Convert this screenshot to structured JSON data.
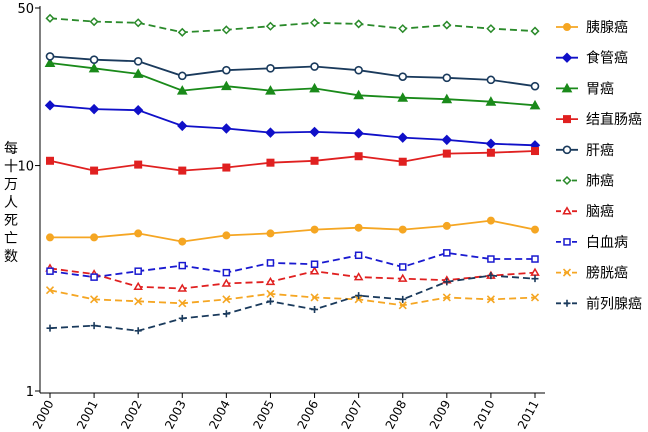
{
  "chart_data": {
    "type": "line",
    "title": "",
    "xlabel": "",
    "ylabel": "每十万人死亡数",
    "y_scale": "log",
    "ylim": [
      1,
      50
    ],
    "y_ticks": [
      1,
      10,
      50
    ],
    "y_tick_labels": [
      "1",
      "10",
      "50"
    ],
    "x": [
      "2000",
      "2001",
      "2002",
      "2003",
      "2004",
      "2005",
      "2006",
      "2007",
      "2008",
      "2009",
      "2010",
      "2011"
    ],
    "grid": false,
    "legend_position": "right",
    "series": [
      {
        "name": "胰腺癌",
        "color": "#f5a623",
        "dash": "solid",
        "marker": "circle-filled",
        "values": [
          4.8,
          4.8,
          5.0,
          4.6,
          4.9,
          5.0,
          5.2,
          5.3,
          5.2,
          5.4,
          5.7,
          5.2
        ]
      },
      {
        "name": "食管癌",
        "color": "#1010c8",
        "dash": "solid",
        "marker": "diamond-filled",
        "values": [
          18.5,
          17.8,
          17.6,
          15.0,
          14.6,
          14.0,
          14.1,
          13.9,
          13.3,
          13.0,
          12.5,
          12.3
        ]
      },
      {
        "name": "胃癌",
        "color": "#1a8a1a",
        "dash": "solid",
        "marker": "triangle-filled",
        "values": [
          28.5,
          27.0,
          25.5,
          21.5,
          22.5,
          21.5,
          22.0,
          20.5,
          20.0,
          19.7,
          19.2,
          18.5
        ]
      },
      {
        "name": "结直肠癌",
        "color": "#e02020",
        "dash": "solid",
        "marker": "square-filled",
        "values": [
          10.5,
          9.5,
          10.1,
          9.5,
          9.8,
          10.3,
          10.5,
          11.0,
          10.4,
          11.3,
          11.4,
          11.6
        ]
      },
      {
        "name": "肝癌",
        "color": "#1a3a5c",
        "dash": "solid",
        "marker": "circle-open",
        "values": [
          30.5,
          29.5,
          29.0,
          25.0,
          26.5,
          27.0,
          27.5,
          26.5,
          24.8,
          24.5,
          24.0,
          22.5
        ]
      },
      {
        "name": "肺癌",
        "color": "#2a8a2a",
        "dash": "dashed",
        "marker": "diamond-open",
        "values": [
          45.0,
          43.5,
          43.0,
          39.0,
          40.0,
          41.5,
          43.0,
          42.5,
          40.5,
          42.0,
          40.5,
          39.5
        ]
      },
      {
        "name": "脑癌",
        "color": "#e02020",
        "dash": "dashed",
        "marker": "triangle-open",
        "values": [
          3.5,
          3.3,
          2.9,
          2.85,
          3.0,
          3.05,
          3.4,
          3.2,
          3.15,
          3.1,
          3.25,
          3.35
        ]
      },
      {
        "name": "白血病",
        "color": "#1a1ad0",
        "dash": "dashed",
        "marker": "square-open",
        "values": [
          3.4,
          3.2,
          3.4,
          3.6,
          3.35,
          3.7,
          3.65,
          4.0,
          3.55,
          4.1,
          3.85,
          3.85
        ]
      },
      {
        "name": "膀胱癌",
        "color": "#f5a623",
        "dash": "dashed",
        "marker": "x",
        "values": [
          2.8,
          2.55,
          2.5,
          2.45,
          2.55,
          2.7,
          2.6,
          2.55,
          2.4,
          2.6,
          2.55,
          2.6
        ]
      },
      {
        "name": "前列腺癌",
        "color": "#1a3a5c",
        "dash": "dashed",
        "marker": "plus",
        "values": [
          1.9,
          1.95,
          1.85,
          2.1,
          2.2,
          2.5,
          2.3,
          2.65,
          2.55,
          3.05,
          3.25,
          3.15
        ]
      }
    ]
  }
}
